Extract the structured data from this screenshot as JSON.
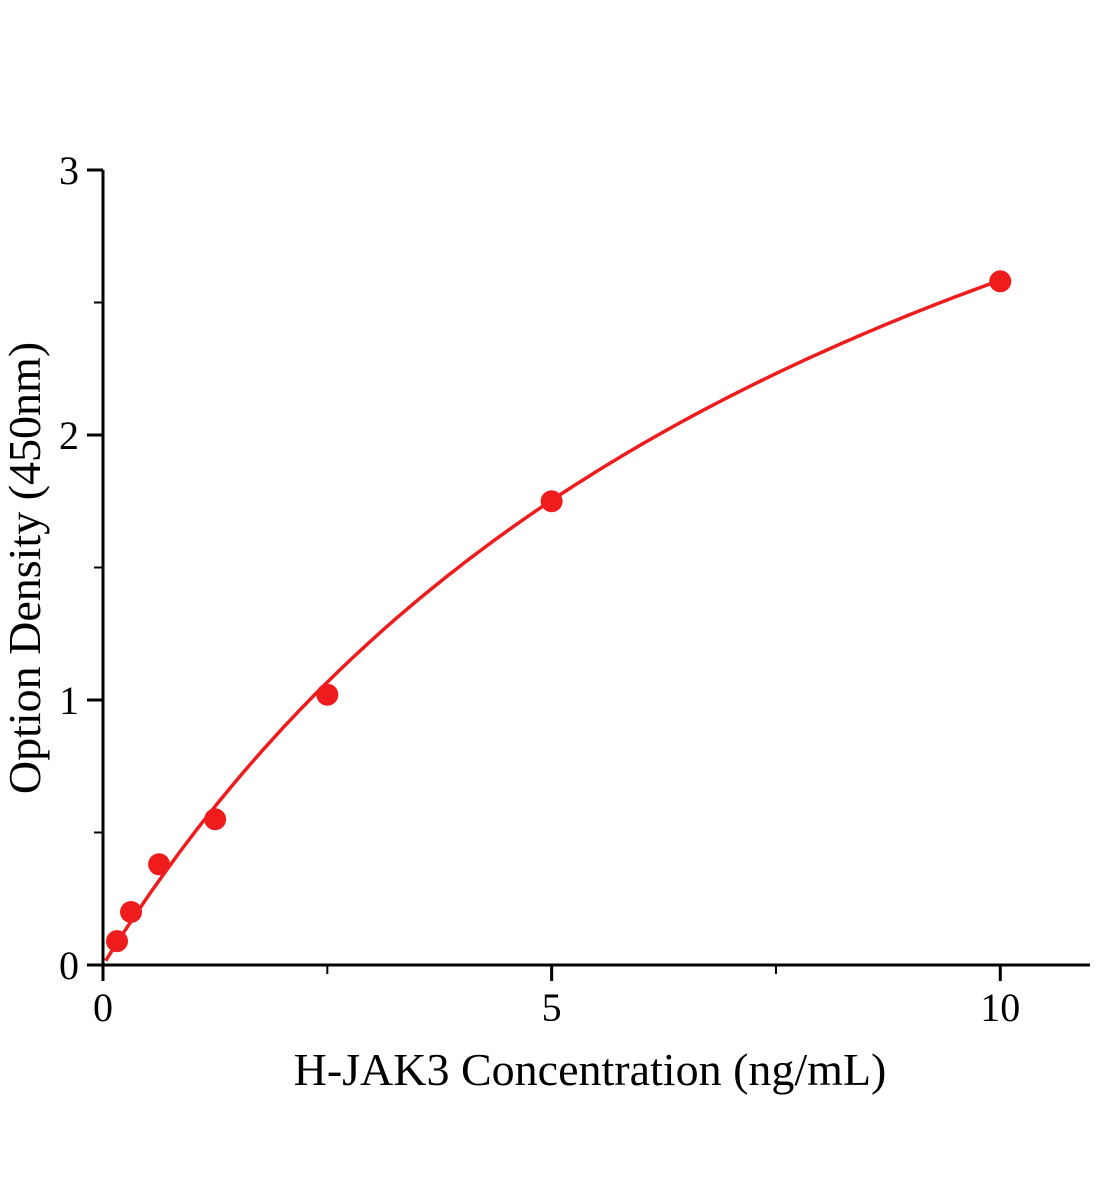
{
  "chart_data": {
    "type": "scatter",
    "title": "",
    "xlabel": "H-JAK3 Concentration (ng/mL)",
    "ylabel": "Option Density (450nm)",
    "x": [
      0.156,
      0.3125,
      0.625,
      1.25,
      2.5,
      5,
      10
    ],
    "y": [
      0.09,
      0.2,
      0.38,
      0.55,
      1.02,
      1.75,
      2.58
    ],
    "xlim": [
      0,
      11
    ],
    "ylim": [
      0,
      3
    ],
    "x_major_ticks": [
      0,
      5,
      10
    ],
    "x_minor_ticks": [
      2.5,
      7.5
    ],
    "y_major_ticks": [
      0,
      1,
      2,
      3
    ],
    "y_minor_ticks": [
      0.5,
      1.5,
      2.5
    ],
    "grid": false,
    "legend": "none",
    "marker_color": "#ee1c1d",
    "curve_color": "#ee1c1d",
    "axis_color": "#000000",
    "fit": {
      "type": "hyperbolic",
      "a": 4.91,
      "b": 9.0,
      "x_start": 0.03,
      "x_end": 10
    }
  }
}
